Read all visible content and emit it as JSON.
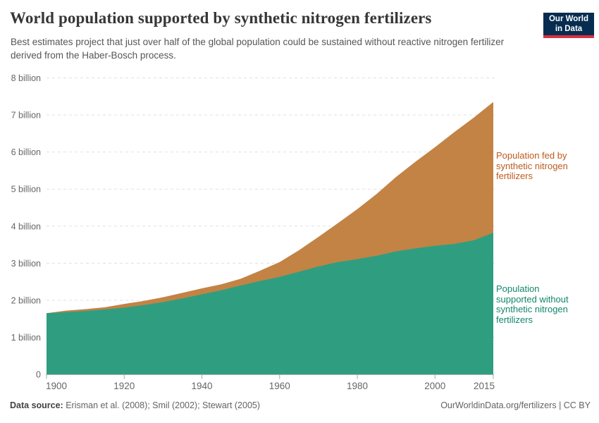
{
  "header": {
    "logo": {
      "line1": "Our World",
      "line2": "in Data"
    }
  },
  "chart_data": {
    "type": "area",
    "stacked": true,
    "title": "World population supported by synthetic nitrogen fertilizers",
    "subtitle": "Best estimates project that just over half of the global population could be sustained without reactive nitrogen fertilizer derived from the Haber-Bosch process.",
    "xlabel": "",
    "ylabel": "",
    "grid": "dashed-horizontal",
    "legend_position": "right-annotations",
    "ylim": [
      0,
      8
    ],
    "x": [
      1900,
      1905,
      1910,
      1915,
      1920,
      1925,
      1930,
      1935,
      1940,
      1945,
      1950,
      1955,
      1960,
      1965,
      1970,
      1975,
      1980,
      1985,
      1990,
      1995,
      2000,
      2005,
      2010,
      2015
    ],
    "series": [
      {
        "name": "Population supported without synthetic nitrogen fertilizers",
        "color": "#2f9e80",
        "values": [
          1.65,
          1.68,
          1.71,
          1.75,
          1.8,
          1.87,
          1.95,
          2.05,
          2.16,
          2.27,
          2.4,
          2.52,
          2.63,
          2.77,
          2.91,
          3.03,
          3.11,
          3.2,
          3.32,
          3.4,
          3.47,
          3.52,
          3.62,
          3.82
        ]
      },
      {
        "name": "Population fed by synthetic nitrogen fertilizers",
        "color": "#c28345",
        "values": [
          0.0,
          0.04,
          0.05,
          0.06,
          0.1,
          0.11,
          0.13,
          0.15,
          0.16,
          0.16,
          0.18,
          0.28,
          0.4,
          0.58,
          0.8,
          1.05,
          1.35,
          1.67,
          2.01,
          2.34,
          2.66,
          3.02,
          3.31,
          3.53
        ]
      }
    ],
    "y_ticks": [
      {
        "v": 0,
        "label": "0"
      },
      {
        "v": 1,
        "label": "1 billion"
      },
      {
        "v": 2,
        "label": "2 billion"
      },
      {
        "v": 3,
        "label": "3 billion"
      },
      {
        "v": 4,
        "label": "4 billion"
      },
      {
        "v": 5,
        "label": "5 billion"
      },
      {
        "v": 6,
        "label": "6 billion"
      },
      {
        "v": 7,
        "label": "7 billion"
      },
      {
        "v": 8,
        "label": "8 billion"
      }
    ],
    "x_ticks": [
      {
        "v": 1900,
        "label": "1900"
      },
      {
        "v": 1920,
        "label": "1920"
      },
      {
        "v": 1940,
        "label": "1940"
      },
      {
        "v": 1960,
        "label": "1960"
      },
      {
        "v": 1980,
        "label": "1980"
      },
      {
        "v": 2000,
        "label": "2000"
      },
      {
        "v": 2015,
        "label": "2015"
      }
    ],
    "annotations": [
      {
        "text": "Population fed by\nsynthetic nitrogen\nfertilizers",
        "color": "#bd5a1d"
      },
      {
        "text": "Population\nsupported without\nsynthetic nitrogen\nfertilizers",
        "color": "#12866b"
      }
    ]
  },
  "footer": {
    "source_label": "Data source:",
    "source_text": "Erisman et al. (2008); Smil (2002); Stewart (2005)",
    "credit": "OurWorldinData.org/fertilizers | CC BY"
  }
}
